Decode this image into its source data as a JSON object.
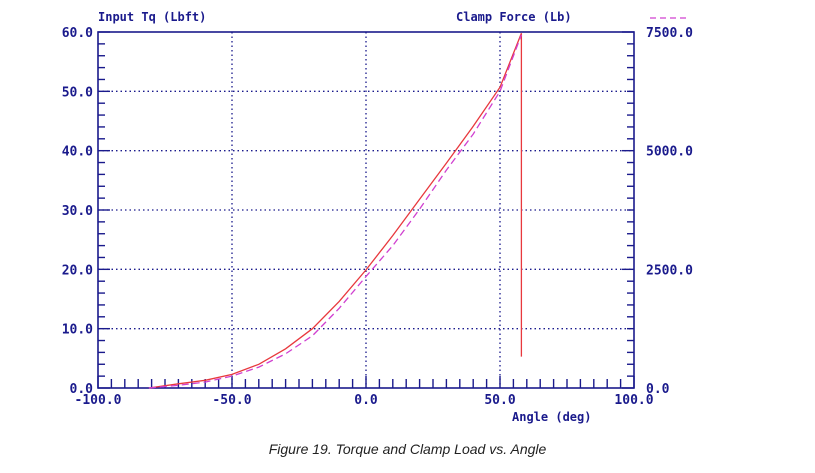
{
  "caption": "Figure 19. Torque and Clamp Load vs. Angle",
  "chart_data": {
    "type": "line",
    "grid": true,
    "left_axis_label": "Input Tq (Lbft)",
    "right_axis_label": "Clamp Force (Lb)",
    "xlabel": "Angle (deg)",
    "xlim": [
      -100,
      100
    ],
    "ylim_left": [
      0,
      60
    ],
    "ylim_right": [
      0,
      7500
    ],
    "x_ticks": [
      "-100.0",
      "-50.0",
      "0.0",
      "50.0",
      "100.0"
    ],
    "x_tick_values": [
      -100,
      -50,
      0,
      50,
      100
    ],
    "left_ticks": [
      "0.0",
      "10.0",
      "20.0",
      "30.0",
      "40.0",
      "50.0",
      "60.0"
    ],
    "left_tick_values": [
      0,
      10,
      20,
      30,
      40,
      50,
      60
    ],
    "right_ticks": [
      "0.0",
      "2500.0",
      "5000.0",
      "7500.0"
    ],
    "right_tick_values": [
      0,
      2500,
      5000,
      7500
    ],
    "colors": {
      "axis": "#1a1a8c",
      "grid": "#1a1a8c",
      "torque": "#e8383d",
      "clamp": "#d040d0"
    },
    "series": [
      {
        "axis": "left",
        "style": "solid",
        "x": [
          -81,
          -70,
          -60,
          -50,
          -40,
          -30,
          -20,
          -10,
          0,
          10,
          20,
          30,
          40,
          50,
          58,
          58,
          58
        ],
        "y": [
          0,
          0.7,
          1.3,
          2.3,
          4.0,
          6.6,
          10.0,
          14.6,
          19.9,
          25.7,
          31.8,
          37.9,
          44.1,
          50.7,
          59.8,
          40.0,
          5.3
        ]
      },
      {
        "axis": "right",
        "style": "dashed",
        "x": [
          -81,
          -70,
          -60,
          -50,
          -40,
          -30,
          -20,
          -10,
          0,
          10,
          20,
          30,
          40,
          50,
          58
        ],
        "y": [
          0,
          56,
          125,
          250,
          440,
          720,
          1100,
          1680,
          2350,
          3000,
          3770,
          4590,
          5350,
          6250,
          7440
        ]
      }
    ]
  }
}
